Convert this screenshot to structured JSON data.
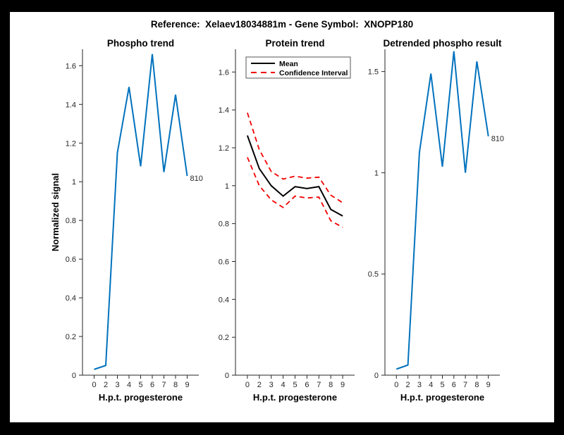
{
  "figure": {
    "title": "Reference:  Xelaev18034881m - Gene Symbol:  XNOPP180",
    "background_color": "#ffffff",
    "border_color": "#000000",
    "text_color": "#000000",
    "axis_color": "#262626"
  },
  "chart_data": [
    {
      "type": "line",
      "title": "Phospho trend",
      "xlabel": "H.p.t. progesterone",
      "ylabel": "Normalized signal",
      "x_tick_labels": [
        "0",
        "2",
        "3",
        "4",
        "5",
        "6",
        "7",
        "8",
        "9"
      ],
      "y_ticks": [
        0,
        0.2,
        0.4,
        0.6,
        0.8,
        1,
        1.2,
        1.4,
        1.6
      ],
      "ylim": [
        0,
        1.685
      ],
      "grid": false,
      "series": [
        {
          "name": "phospho-signal",
          "color": "#0072bd",
          "style": "solid",
          "values": [
            0.03,
            0.05,
            1.15,
            1.49,
            1.08,
            1.66,
            1.05,
            1.45,
            1.03
          ]
        }
      ],
      "end_label": "810",
      "legend": null
    },
    {
      "type": "line",
      "title": "Protein trend",
      "xlabel": "H.p.t. progesterone",
      "ylabel": "",
      "x_tick_labels": [
        "0",
        "2",
        "3",
        "4",
        "5",
        "6",
        "7",
        "8",
        "9"
      ],
      "y_ticks": [
        0,
        0.2,
        0.4,
        0.6,
        0.8,
        1,
        1.2,
        1.4,
        1.6
      ],
      "ylim": [
        0,
        1.72
      ],
      "grid": false,
      "series": [
        {
          "name": "mean",
          "color": "#000000",
          "style": "solid",
          "values": [
            1.265,
            1.09,
            1.0,
            0.945,
            0.995,
            0.985,
            0.995,
            0.875,
            0.84
          ]
        },
        {
          "name": "confidence-interval-upper",
          "color": "#f20000",
          "style": "dashed",
          "values": [
            1.385,
            1.19,
            1.075,
            1.035,
            1.05,
            1.04,
            1.045,
            0.95,
            0.91
          ]
        },
        {
          "name": "confidence-interval-lower",
          "color": "#f20000",
          "style": "dashed",
          "values": [
            1.15,
            1.0,
            0.925,
            0.885,
            0.945,
            0.935,
            0.94,
            0.815,
            0.78
          ]
        }
      ],
      "end_label": null,
      "legend": {
        "position": "top-left",
        "items": [
          {
            "label": "Mean",
            "color": "#000000",
            "style": "solid"
          },
          {
            "label": "Confidence Interval",
            "color": "#f20000",
            "style": "dashed"
          }
        ]
      }
    },
    {
      "type": "line",
      "title": "Detrended phospho result",
      "xlabel": "H.p.t. progesterone",
      "ylabel": "",
      "x_tick_labels": [
        "0",
        "2",
        "3",
        "4",
        "5",
        "6",
        "7",
        "8",
        "9"
      ],
      "y_ticks": [
        0,
        0.5,
        1,
        1.5
      ],
      "ylim": [
        0,
        1.61
      ],
      "grid": false,
      "series": [
        {
          "name": "detrended-phospho-signal",
          "color": "#0072bd",
          "style": "solid",
          "values": [
            0.03,
            0.05,
            1.1,
            1.49,
            1.03,
            1.6,
            1.0,
            1.55,
            1.18
          ]
        }
      ],
      "end_label": "810",
      "legend": null
    }
  ]
}
